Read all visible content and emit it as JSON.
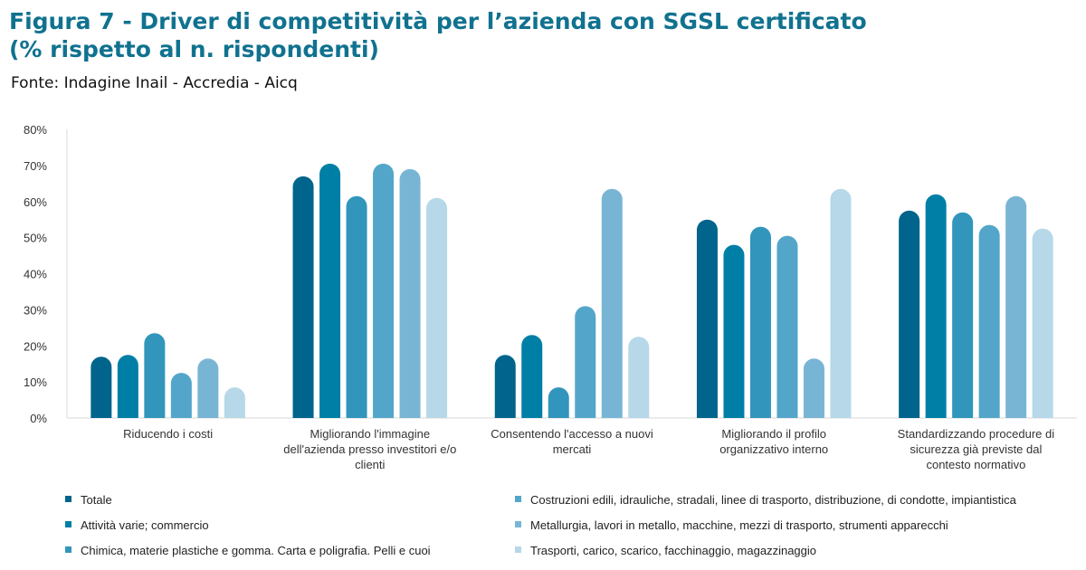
{
  "header": {
    "title_line1": "Figura 7 - Driver di competitività per l’azienda con SGSL certificato",
    "title_line2": "(% rispetto al n. rispondenti)",
    "source": "Fonte: Indagine Inail - Accredia - Aicq"
  },
  "chart_data": {
    "type": "bar",
    "title": "",
    "xlabel": "",
    "ylabel": "",
    "ylim": [
      0,
      80
    ],
    "yticks": [
      "0%",
      "10%",
      "20%",
      "30%",
      "40%",
      "50%",
      "60%",
      "70%",
      "80%"
    ],
    "grid": false,
    "legend_position": "bottom",
    "categories": [
      "Riducendo i costi",
      "Migliorando l'immagine dell'azienda presso investitori e/o clienti",
      "Consentendo l'accesso a nuovi mercati",
      "Migliorando il profilo organizzativo interno",
      "Standardizzando procedure di sicurezza già previste dal contesto normativo"
    ],
    "category_lines": [
      [
        "Riducendo i costi"
      ],
      [
        "Migliorando l'immagine",
        "dell'azienda presso investitori e/o",
        "clienti"
      ],
      [
        "Consentendo l'accesso a nuovi",
        "mercati"
      ],
      [
        "Migliorando il profilo",
        "organizzativo interno"
      ],
      [
        "Standardizzando procedure di",
        "sicurezza già previste dal",
        "contesto normativo"
      ]
    ],
    "series": [
      {
        "name": "Totale",
        "color": "#00648c",
        "values": [
          17,
          67,
          17.5,
          55,
          57.5
        ]
      },
      {
        "name": "Attività varie; commercio",
        "color": "#007fa6",
        "values": [
          17.5,
          70.5,
          23,
          48,
          62
        ]
      },
      {
        "name": "Chimica, materie plastiche e gomma. Carta e poligrafia. Pelli e cuoi",
        "color": "#3295bb",
        "values": [
          23.5,
          61.5,
          8.5,
          53,
          57
        ]
      },
      {
        "name": "Costruzioni edili, idrauliche, stradali, linee di trasporto, distribuzione, di condotte, impiantistica",
        "color": "#53a6c9",
        "values": [
          12.5,
          70.5,
          31,
          50.5,
          53.5
        ]
      },
      {
        "name": "Metallurgia, lavori in metallo, macchine, mezzi di trasporto, strumenti apparecchi",
        "color": "#78b5d5",
        "values": [
          16.5,
          69,
          63.5,
          16.5,
          61.5
        ]
      },
      {
        "name": "Trasporti, carico, scarico, facchinaggio, magazzinaggio",
        "color": "#b6d8e8",
        "values": [
          8.5,
          61,
          22.5,
          63.5,
          52.5
        ]
      }
    ]
  }
}
